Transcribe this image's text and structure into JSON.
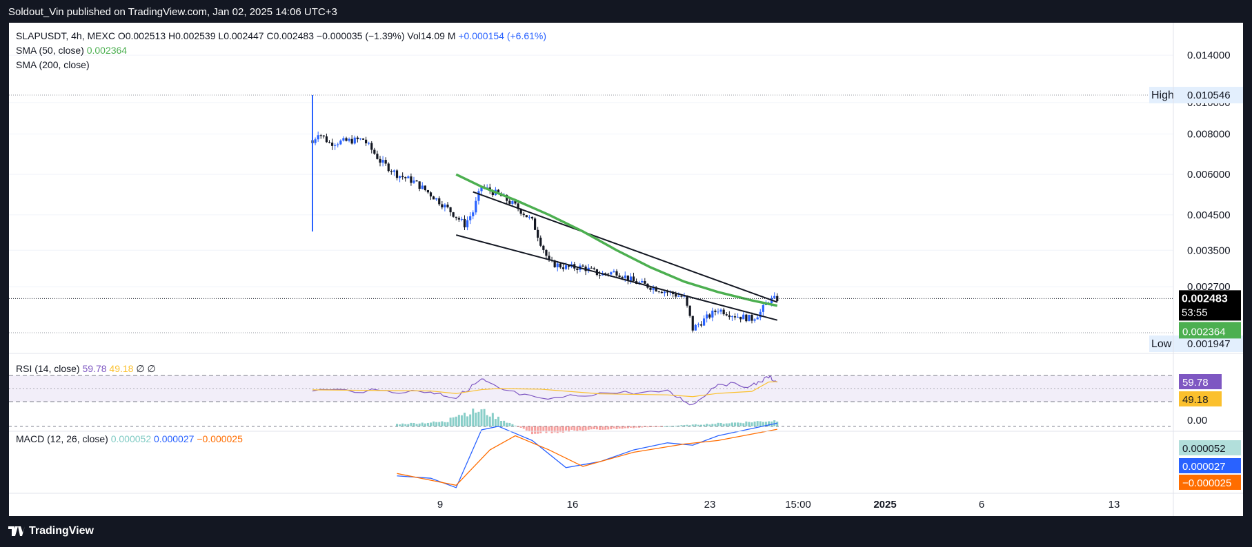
{
  "header": {
    "publisher": "Soldout_Vin published on TradingView.com, Jan 02, 2025 14:06 UTC+3"
  },
  "footer": {
    "brand": "TradingView"
  },
  "legend": {
    "symbol": "SLAPUSDT, 4h, MEXC",
    "o": "O0.002513",
    "h": "H0.002539",
    "l": "L0.002447",
    "c": "C0.002483",
    "change": "−0.000035 (−1.39%)",
    "vol": "Vol14.09 M",
    "extra": "+0.000154 (+6.61%)",
    "sma50": "SMA (50, close)",
    "sma50_value": "0.002364",
    "sma200": "SMA (200, close)"
  },
  "rsi_legend": {
    "label": "RSI (14, close)",
    "v1": "59.78",
    "v2": "49.18",
    "v3": "∅",
    "v4": "∅"
  },
  "macd_legend": {
    "label": "MACD (12, 26, close)",
    "v1": "0.000052",
    "v2": "0.000027",
    "v3": "−0.000025"
  },
  "price_axis": {
    "ticks": [
      "0.014000",
      "0.010000",
      "0.008000",
      "0.006000",
      "0.004500",
      "0.003500",
      "0.002700"
    ],
    "high_label": "High",
    "high_value": "0.010546",
    "low_label": "Low",
    "low_value": "0.001947",
    "current_price": "0.002483",
    "countdown": "53:55",
    "sma_tag": "0.002364"
  },
  "rsi_axis": {
    "rsi_tag": "59.78",
    "ma_tag": "49.18",
    "zero": "0.00"
  },
  "macd_axis": {
    "hist_tag": "0.000052",
    "macd_tag": "0.000027",
    "signal_tag": "−0.000025"
  },
  "time_axis": {
    "ticks": [
      {
        "label": "9",
        "bold": false
      },
      {
        "label": "16",
        "bold": false
      },
      {
        "label": "23",
        "bold": false
      },
      {
        "label": "15:00",
        "bold": false
      },
      {
        "label": "2025",
        "bold": true
      },
      {
        "label": "6",
        "bold": false
      },
      {
        "label": "13",
        "bold": false
      }
    ]
  },
  "colors": {
    "up": "#2962ff",
    "down": "#131722",
    "sma50": "#4caf50",
    "rsi": "#7e57c2",
    "rsi_ma": "#fbc02d",
    "macd": "#2962ff",
    "signal": "#ff6d00",
    "hist_up": "#26a69a",
    "hist_down": "#ef5350"
  },
  "chart_data": {
    "type": "candlestick",
    "symbol": "SLAPUSDT",
    "interval": "4h",
    "exchange": "MEXC",
    "price_range": [
      0.0019,
      0.0145
    ],
    "price_scale": "log",
    "high": 0.010546,
    "low": 0.001947,
    "last": 0.002483,
    "ohlc_last": {
      "open": 0.002513,
      "high": 0.002539,
      "low": 0.002447,
      "close": 0.002483
    },
    "sma50_last": 0.002364,
    "price_path": [
      [
        "2024-12-06T00:00",
        0.0075
      ],
      [
        "2024-12-06T08:00",
        0.0081
      ],
      [
        "2024-12-07T00:00",
        0.0075
      ],
      [
        "2024-12-08T00:00",
        0.0076
      ],
      [
        "2024-12-09T00:00",
        0.0077
      ],
      [
        "2024-12-10T00:00",
        0.0066
      ],
      [
        "2024-12-11T00:00",
        0.006
      ],
      [
        "2024-12-12T00:00",
        0.0057
      ],
      [
        "2024-12-13T00:00",
        0.0052
      ],
      [
        "2024-12-14T00:00",
        0.0047
      ],
      [
        "2024-12-15T00:00",
        0.0042
      ],
      [
        "2024-12-15T12:00",
        0.0046
      ],
      [
        "2024-12-16T00:00",
        0.0055
      ],
      [
        "2024-12-17T00:00",
        0.0052
      ],
      [
        "2024-12-18T00:00",
        0.0048
      ],
      [
        "2024-12-19T00:00",
        0.0043
      ],
      [
        "2024-12-19T12:00",
        0.0037
      ],
      [
        "2024-12-20T00:00",
        0.0032
      ],
      [
        "2024-12-21T00:00",
        0.0031
      ],
      [
        "2024-12-22T00:00",
        0.0031
      ],
      [
        "2024-12-23T00:00",
        0.00295
      ],
      [
        "2024-12-24T00:00",
        0.003
      ],
      [
        "2024-12-25T00:00",
        0.0028
      ],
      [
        "2024-12-26T00:00",
        0.0027
      ],
      [
        "2024-12-27T00:00",
        0.0026
      ],
      [
        "2024-12-28T00:00",
        0.0025
      ],
      [
        "2024-12-28T12:00",
        0.002
      ],
      [
        "2024-12-29T00:00",
        0.0021
      ],
      [
        "2024-12-30T00:00",
        0.0023
      ],
      [
        "2024-12-31T00:00",
        0.0022
      ],
      [
        "2025-01-01T00:00",
        0.00215
      ],
      [
        "2025-01-01T12:00",
        0.00225
      ],
      [
        "2025-01-02T00:00",
        0.00245
      ],
      [
        "2025-01-02T12:00",
        0.00248
      ]
    ],
    "sma50": [
      [
        "2024-12-14T12:00",
        0.006
      ],
      [
        "2024-12-16T00:00",
        0.0055
      ],
      [
        "2024-12-18T00:00",
        0.005
      ],
      [
        "2024-12-20T00:00",
        0.0045
      ],
      [
        "2024-12-22T00:00",
        0.004
      ],
      [
        "2024-12-24T00:00",
        0.0035
      ],
      [
        "2024-12-26T00:00",
        0.0031
      ],
      [
        "2024-12-28T00:00",
        0.0028
      ],
      [
        "2024-12-30T00:00",
        0.0026
      ],
      [
        "2025-01-01T00:00",
        0.00245
      ],
      [
        "2025-01-02T12:00",
        0.00236
      ]
    ],
    "trendlines": [
      {
        "from": [
          "2024-12-15T12:00",
          0.0053
        ],
        "to": [
          "2025-01-02T12:00",
          0.00242
        ]
      },
      {
        "from": [
          "2024-12-14T12:00",
          0.0039
        ],
        "to": [
          "2025-01-02T12:00",
          0.00213
        ]
      }
    ],
    "rsi": {
      "range": [
        0,
        100
      ],
      "last": 59.78,
      "ma_last": 49.18,
      "levels": [
        70,
        50,
        30
      ],
      "points": [
        [
          "2024-12-06T00:00",
          48
        ],
        [
          "2024-12-10T00:00",
          46
        ],
        [
          "2024-12-13T00:00",
          45
        ],
        [
          "2024-12-14T12:00",
          36
        ],
        [
          "2024-12-16T00:00",
          64
        ],
        [
          "2024-12-17T00:00",
          50
        ],
        [
          "2024-12-19T12:00",
          33
        ],
        [
          "2024-12-23T00:00",
          43
        ],
        [
          "2024-12-27T00:00",
          45
        ],
        [
          "2024-12-28T12:00",
          25
        ],
        [
          "2024-12-30T00:00",
          58
        ],
        [
          "2025-01-01T00:00",
          54
        ],
        [
          "2025-01-02T00:00",
          68
        ],
        [
          "2025-01-02T12:00",
          59.78
        ]
      ]
    },
    "macd": {
      "range": [
        -0.00055,
        0.00018
      ],
      "macd_last": 2.7e-05,
      "signal_last": -2.5e-05,
      "hist_last": 5.2e-05,
      "macd": [
        [
          "2024-12-11T00:00",
          -0.00042
        ],
        [
          "2024-12-13T00:00",
          -0.00044
        ],
        [
          "2024-12-14T12:00",
          -0.00052
        ],
        [
          "2024-12-16T00:00",
          -3e-05
        ],
        [
          "2024-12-17T00:00",
          0.0
        ],
        [
          "2024-12-19T00:00",
          -0.00012
        ],
        [
          "2024-12-21T00:00",
          -0.00035
        ],
        [
          "2024-12-23T00:00",
          -0.0003
        ],
        [
          "2024-12-25T00:00",
          -0.0002
        ],
        [
          "2024-12-27T00:00",
          -0.00014
        ],
        [
          "2024-12-28T12:00",
          -0.00016
        ],
        [
          "2024-12-30T00:00",
          -8e-05
        ],
        [
          "2025-01-02T12:00",
          2.7e-05
        ]
      ],
      "signal": [
        [
          "2024-12-11T00:00",
          -0.0004
        ],
        [
          "2024-12-14T12:00",
          -0.0005
        ],
        [
          "2024-12-16T12:00",
          -0.0002
        ],
        [
          "2024-12-18T00:00",
          -8e-05
        ],
        [
          "2024-12-20T00:00",
          -0.0002
        ],
        [
          "2024-12-22T00:00",
          -0.00034
        ],
        [
          "2024-12-25T00:00",
          -0.00022
        ],
        [
          "2024-12-28T00:00",
          -0.00015
        ],
        [
          "2024-12-30T00:00",
          -0.00012
        ],
        [
          "2025-01-02T12:00",
          -2.5e-05
        ]
      ],
      "histogram_peak": [
        [
          "2024-12-16T00:00",
          0.00014
        ],
        [
          "2024-12-19T00:00",
          -6e-05
        ],
        [
          "2025-01-02T12:00",
          5.2e-05
        ]
      ]
    },
    "x_ticks": [
      "9",
      "16",
      "23",
      "15:00",
      "2025",
      "6",
      "13"
    ]
  }
}
